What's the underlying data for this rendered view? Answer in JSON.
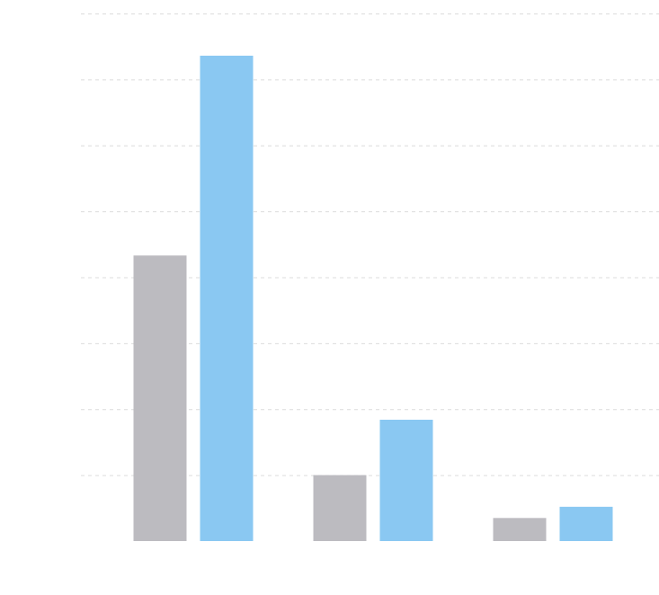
{
  "chart_data": {
    "type": "bar",
    "categories": [
      null,
      null,
      null
    ],
    "series": [
      {
        "color": "#bcbbc0",
        "values": [
          4.33,
          1.0,
          0.35
        ]
      },
      {
        "color": "#8ac8f2",
        "values": [
          7.36,
          1.84,
          0.52
        ]
      }
    ],
    "ylim": [
      0,
      8
    ],
    "yticks": [
      1,
      2,
      3,
      4,
      5,
      6,
      7,
      8
    ],
    "grid": true
  }
}
